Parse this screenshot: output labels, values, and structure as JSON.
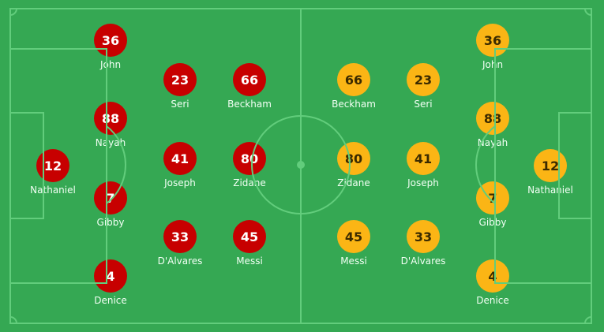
{
  "colors": {
    "pitch": "#36ab55",
    "lines": "#62cd7c",
    "home": "#c70000",
    "away": "#fbb515",
    "home_text": "#ffffff",
    "away_text": "#3a2a00"
  },
  "home_team": {
    "players": [
      {
        "number": "12",
        "name": "Nathaniel",
        "row": "gk",
        "slot": 2
      },
      {
        "number": "36",
        "name": "John",
        "row": "def",
        "slot": 0
      },
      {
        "number": "88",
        "name": "Nayah",
        "row": "def",
        "slot": 1
      },
      {
        "number": "7",
        "name": "Gibby",
        "row": "def",
        "slot": 2
      },
      {
        "number": "4",
        "name": "Denice",
        "row": "def",
        "slot": 3
      },
      {
        "number": "23",
        "name": "Seri",
        "row": "mid",
        "slot": 0
      },
      {
        "number": "41",
        "name": "Joseph",
        "row": "mid",
        "slot": 1
      },
      {
        "number": "33",
        "name": "D'Alvares",
        "row": "mid",
        "slot": 2
      },
      {
        "number": "66",
        "name": "Beckham",
        "row": "fwd",
        "slot": 0
      },
      {
        "number": "80",
        "name": "Zidane",
        "row": "fwd",
        "slot": 1
      },
      {
        "number": "45",
        "name": "Messi",
        "row": "fwd",
        "slot": 2
      }
    ]
  },
  "away_team": {
    "players": [
      {
        "number": "12",
        "name": "Nathaniel",
        "row": "gk",
        "slot": 2
      },
      {
        "number": "36",
        "name": "John",
        "row": "def",
        "slot": 0
      },
      {
        "number": "88",
        "name": "Nayah",
        "row": "def",
        "slot": 1
      },
      {
        "number": "7",
        "name": "Gibby",
        "row": "def",
        "slot": 2
      },
      {
        "number": "4",
        "name": "Denice",
        "row": "def",
        "slot": 3
      },
      {
        "number": "23",
        "name": "Seri",
        "row": "mid",
        "slot": 0
      },
      {
        "number": "41",
        "name": "Joseph",
        "row": "mid",
        "slot": 1
      },
      {
        "number": "33",
        "name": "D'Alvares",
        "row": "mid",
        "slot": 2
      },
      {
        "number": "66",
        "name": "Beckham",
        "row": "fwd",
        "slot": 0
      },
      {
        "number": "80",
        "name": "Zidane",
        "row": "fwd",
        "slot": 1
      },
      {
        "number": "45",
        "name": "Messi",
        "row": "fwd",
        "slot": 2
      }
    ]
  }
}
